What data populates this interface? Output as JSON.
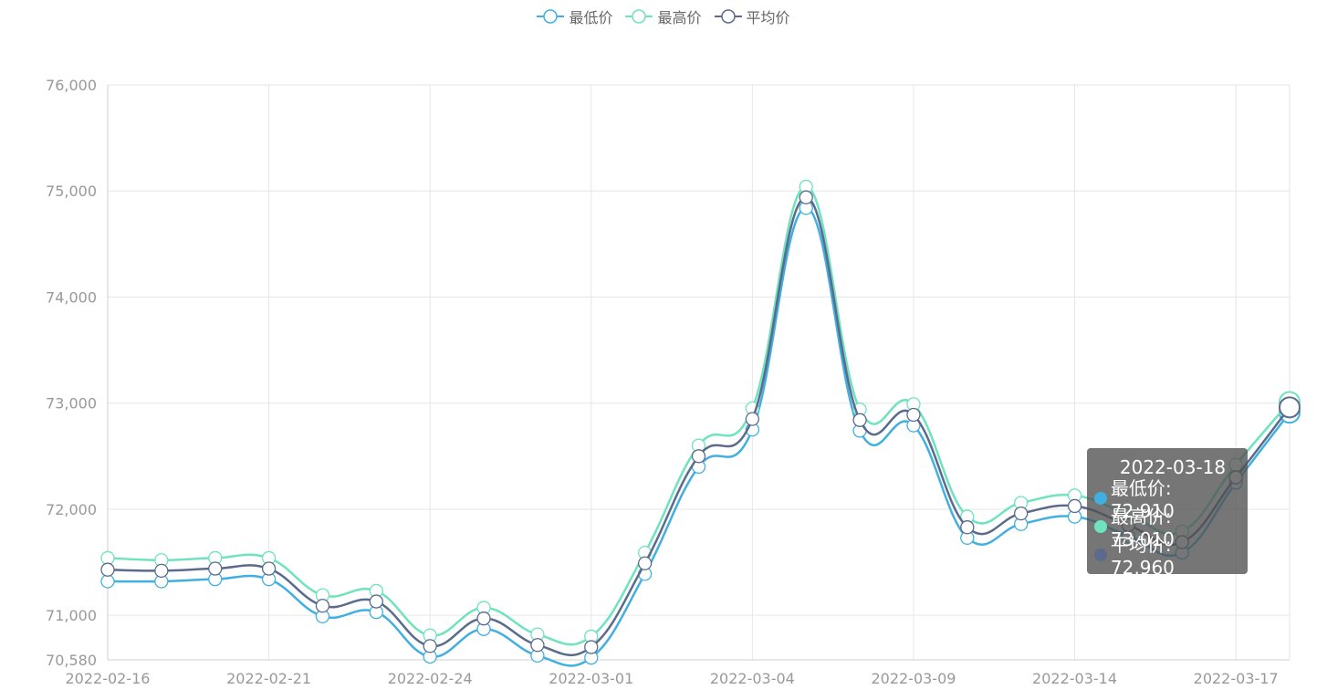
{
  "legend": [
    {
      "name": "最低价",
      "color": "#41b0e0"
    },
    {
      "name": "最高价",
      "color": "#6fe3bd"
    },
    {
      "name": "平均价",
      "color": "#5b6a8d"
    }
  ],
  "tooltip": {
    "date": "2022-03-18",
    "rows": [
      {
        "label": "最低价: 72,910",
        "color": "#41b0e0"
      },
      {
        "label": "最高价: 73,010",
        "color": "#6fe3bd"
      },
      {
        "label": "平均价: 72,960",
        "color": "#5b6a8d"
      }
    ]
  },
  "chart_data": {
    "type": "line",
    "x": [
      "2022-02-16",
      "2022-02-17",
      "2022-02-18",
      "2022-02-21",
      "2022-02-22",
      "2022-02-23",
      "2022-02-24",
      "2022-02-25",
      "2022-02-28",
      "2022-03-01",
      "2022-03-02",
      "2022-03-03",
      "2022-03-04",
      "2022-03-07",
      "2022-03-08",
      "2022-03-09",
      "2022-03-10",
      "2022-03-11",
      "2022-03-14",
      "2022-03-15",
      "2022-03-16",
      "2022-03-17",
      "2022-03-18"
    ],
    "x_tick_labels": [
      "2022-02-16",
      "2022-02-21",
      "2022-02-24",
      "2022-03-01",
      "2022-03-04",
      "2022-03-09",
      "2022-03-14",
      "2022-03-17"
    ],
    "y_tick_labels": [
      "76,000",
      "75,000",
      "74,000",
      "73,000",
      "72,000",
      "71,000",
      "70,580"
    ],
    "ylim": [
      70580,
      76000
    ],
    "grid": true,
    "legend_position": "top-center",
    "series": [
      {
        "name": "最低价",
        "values": [
          71320,
          71320,
          71340,
          71340,
          70990,
          71030,
          70610,
          70870,
          70620,
          70600,
          71390,
          72400,
          72750,
          74840,
          72740,
          72790,
          71730,
          71860,
          71930,
          71750,
          71590,
          72250,
          72910
        ]
      },
      {
        "name": "最高价",
        "values": [
          71540,
          71520,
          71540,
          71540,
          71190,
          71230,
          70810,
          71070,
          70820,
          70800,
          71590,
          72600,
          72950,
          75040,
          72940,
          72990,
          71930,
          72060,
          72130,
          71950,
          71790,
          72420,
          73010
        ]
      },
      {
        "name": "平均价",
        "values": [
          71430,
          71420,
          71440,
          71440,
          71090,
          71130,
          70710,
          70970,
          70720,
          70700,
          71490,
          72500,
          72850,
          74940,
          72840,
          72890,
          71830,
          71960,
          72030,
          71850,
          71690,
          72300,
          72960
        ]
      }
    ]
  }
}
